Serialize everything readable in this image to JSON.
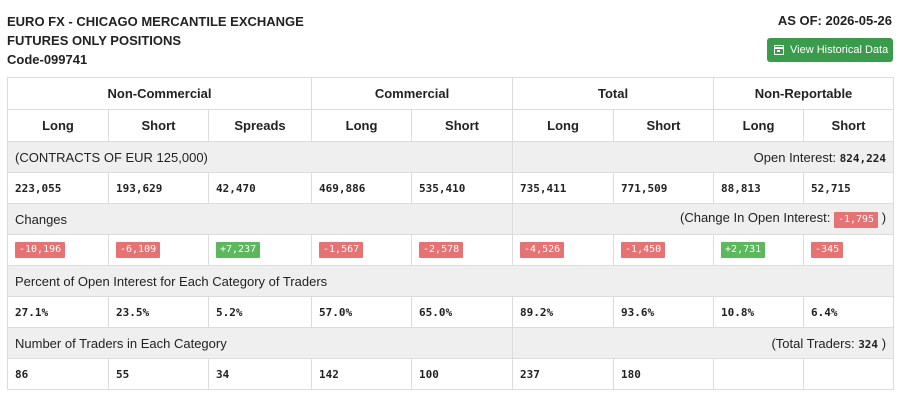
{
  "header": {
    "title_line1": "EURO FX - CHICAGO MERCANTILE EXCHANGE",
    "title_line2": "FUTURES ONLY POSITIONS",
    "code": "Code-099741",
    "as_of": "AS OF: 2026-05-26",
    "history_button": "View Historical Data"
  },
  "groups": [
    "Non-Commercial",
    "Commercial",
    "Total",
    "Non-Reportable"
  ],
  "subheaders": [
    "Long",
    "Short",
    "Spreads",
    "Long",
    "Short",
    "Long",
    "Short",
    "Long",
    "Short"
  ],
  "contracts": {
    "label": "(CONTRACTS OF EUR 125,000)",
    "oi_label": "Open Interest:",
    "oi_value": "824,224",
    "values": [
      "223,055",
      "193,629",
      "42,470",
      "469,886",
      "535,410",
      "735,411",
      "771,509",
      "88,813",
      "52,715"
    ]
  },
  "changes": {
    "label": "Changes",
    "oi_label_prefix": "(Change In Open Interest:",
    "oi_value": "-1,795",
    "oi_label_suffix": ")",
    "values": [
      "-10,196",
      "-6,109",
      "+7,237",
      "-1,567",
      "-2,578",
      "-4,526",
      "-1,450",
      "+2,731",
      "-345"
    ]
  },
  "percent": {
    "label": "Percent of Open Interest for Each Category of Traders",
    "values": [
      "27.1%",
      "23.5%",
      "5.2%",
      "57.0%",
      "65.0%",
      "89.2%",
      "93.6%",
      "10.8%",
      "6.4%"
    ]
  },
  "traders": {
    "label": "Number of Traders in Each Category",
    "total_label_prefix": "(Total Traders:",
    "total_value": "324",
    "total_label_suffix": ")",
    "values": [
      "86",
      "55",
      "34",
      "142",
      "100",
      "237",
      "180",
      "",
      ""
    ]
  },
  "colors": {
    "negative": "#e57373",
    "positive": "#5cb85c",
    "button": "#3a9b4c"
  }
}
